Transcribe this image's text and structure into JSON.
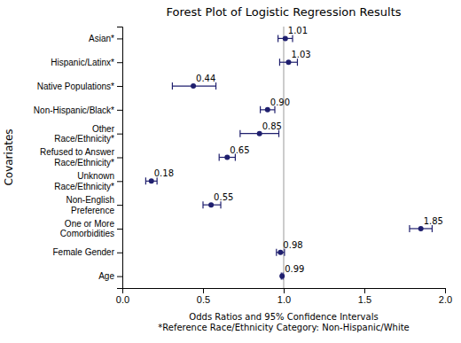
{
  "chart_data": {
    "type": "forest",
    "title": "Forest Plot of Logistic Regression Results",
    "xlabel": "Odds Ratios and 95% Confidence Intervals\n*Reference Race/Ethnicity Category: Non-Hispanic/White",
    "ylabel": "Covariates",
    "categories": [
      "Age",
      "Female Gender",
      "One or More\nComorbidities",
      "Non-English\nPreference",
      "Unknown\nRace/Ethnicity*",
      "Refused to Answer\nRace/Ethnicity*",
      "Other\nRace/Ethnicity*",
      "Non-Hispanic/Black*",
      "Native Populations*",
      "Hispanic/Latinx*",
      "Asian*"
    ],
    "values": [
      0.99,
      0.98,
      1.85,
      0.55,
      0.18,
      0.65,
      0.85,
      0.9,
      0.44,
      1.03,
      1.01
    ],
    "value_labels": [
      "0.99",
      "0.98",
      "1.85",
      "0.55",
      "0.18",
      "0.65",
      "0.85",
      "0.90",
      "0.44",
      "1.03",
      "1.01"
    ],
    "ci_low": [
      0.985,
      0.955,
      1.78,
      0.5,
      0.145,
      0.6,
      0.73,
      0.855,
      0.31,
      0.975,
      0.965
    ],
    "ci_high": [
      0.995,
      1.005,
      1.92,
      0.61,
      0.215,
      0.7,
      0.97,
      0.945,
      0.58,
      1.085,
      1.055
    ],
    "color": "#1f1f6e",
    "reference_line": 1,
    "xlim": [
      0,
      2
    ],
    "xticks": [
      {
        "value": 0,
        "label": "0.0"
      },
      0.5,
      {
        "value": 1,
        "label": "1.0"
      },
      1.5,
      {
        "value": 2,
        "label": "2.0"
      }
    ],
    "data_labels": true,
    "grid": false
  }
}
